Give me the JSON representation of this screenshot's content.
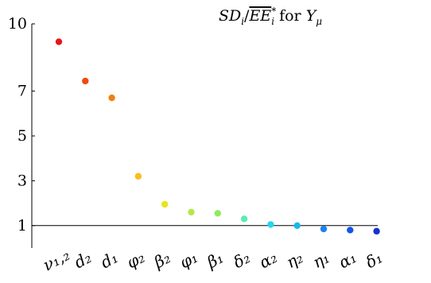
{
  "chart_data": {
    "type": "scatter",
    "title": "SDᵢ / EEᵢ* for Yμ",
    "title_parts": {
      "numerator": "SD",
      "numerator_sub": "i",
      "denominator": "EE",
      "denominator_sub": "i",
      "denominator_sup": "*",
      "connector": "for",
      "target": "Y",
      "target_sub": "μ"
    },
    "categories": [
      "ν₁,₂",
      "d₂",
      "d₁",
      "φ₂",
      "β₂",
      "φ₁",
      "β₁",
      "δ₂",
      "α₂",
      "η₂",
      "η₁",
      "α₁",
      "δ₁"
    ],
    "values": [
      9.2,
      7.45,
      6.7,
      3.2,
      1.95,
      1.6,
      1.55,
      1.3,
      1.05,
      1.0,
      0.85,
      0.8,
      0.75
    ],
    "colors": [
      "#e8141a",
      "#f04a0e",
      "#f27f0c",
      "#f8bf1a",
      "#e6e61a",
      "#b4e84a",
      "#8cec5a",
      "#5cebb3",
      "#24d7ef",
      "#18b8e8",
      "#1a85ec",
      "#1356e8",
      "#1631cf"
    ],
    "yticks": [
      1,
      3,
      5,
      7,
      10
    ],
    "ylim": [
      0,
      10
    ],
    "reference_line": 1,
    "xlabel": "",
    "ylabel": "",
    "grid": false,
    "legend": "none"
  }
}
